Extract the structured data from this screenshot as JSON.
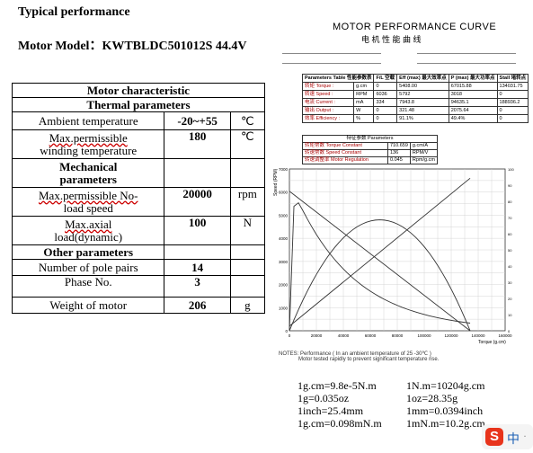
{
  "heading": "Typical performance",
  "model_line": "Motor Model：KWTBLDC501012S 44.4V",
  "table": {
    "title": "Motor characteristic",
    "thermal": "Thermal parameters",
    "ambient_label": "Ambient temperature",
    "ambient_value": "-20~+55",
    "ambient_unit": "℃",
    "maxtemp_label1": "Max.permissible",
    "maxtemp_label2": "winding temperature",
    "maxtemp_value": "180",
    "maxtemp_unit": "℃",
    "mech1": "Mechanical",
    "mech2": "parameters",
    "maxspeed_label1": "Max.permissible No-",
    "maxspeed_label2": "load  speed",
    "maxspeed_value": "20000",
    "maxspeed_unit": "rpm",
    "axial_label1": "Max.axial",
    "axial_label2": "load(dynamic)",
    "axial_value": "100",
    "axial_unit": "N",
    "other": "Other parameters",
    "poles_label": "Number of pole pairs",
    "poles_value": "14",
    "phase_label": "Phase No.",
    "phase_value": "3",
    "weight_label": "Weight of motor",
    "weight_value": "206",
    "weight_unit": "g"
  },
  "curve": {
    "title": "MOTOR PERFORMANCE CURVE",
    "title_cn": "电 机 性 能 曲 线",
    "params_header": [
      "Parameters Table 性能参数表",
      "F/L 空载",
      "Eff (max) 最大效率点",
      "P (max) 最大功率点",
      "Stall 堵转点"
    ],
    "params_rows": [
      [
        "转矩 Torque :",
        "g.cm",
        "0",
        "5408.00",
        "67015.88",
        "134031.75"
      ],
      [
        "转速 Speed :",
        "RPM",
        "6036",
        "5792",
        "3018",
        "0"
      ],
      [
        "电流 Current :",
        "mA",
        "334",
        "7943.8",
        "94635.1",
        "188936.2"
      ],
      [
        "输出 Output :",
        "W",
        "0",
        "321.48",
        "2075.64",
        "0"
      ],
      [
        "效率 Efficiency :",
        "%",
        "0",
        "91.1%",
        "49.4%",
        "0"
      ]
    ],
    "special_header": [
      "特征参数 Parameters"
    ],
    "special_rows": [
      [
        "转矩常数 Torque Constant",
        "710.659",
        "g.cm/A"
      ],
      [
        "转速常数 Speed Constant",
        "136",
        "RPM/V"
      ],
      [
        "转速调整率 Motor Regulation",
        "0.045",
        "Rpm/g.cm"
      ]
    ],
    "x_ticks": [
      "0",
      "20000",
      "40000",
      "60000",
      "80000",
      "100000",
      "120000",
      "140000",
      "160000"
    ],
    "x_label": "Torque (g.cm)",
    "y_left_label": "Speed (RPM)",
    "y_ticks": [
      "0",
      "1000",
      "2000",
      "3000",
      "4000",
      "5000",
      "6000",
      "7000"
    ],
    "notes_line1": "NOTES: Performance ( In an ambient temperature of 25 -30℃ )",
    "notes_line2": "Motor tested rapidly to prevent significant temperature rise."
  },
  "conversions": {
    "c1": "1g.cm=9.8e-5N.m",
    "c2": "1N.m=10204g.cm",
    "c3": "1g=0.035oz",
    "c4": "1oz=28.35g",
    "c5": "1inch=25.4mm",
    "c6": "1mm=0.0394inch",
    "c7": "1g.cm=0.098mN.m",
    "c8": "1mN.m=10.2g.cm"
  },
  "ime_label": "中"
}
